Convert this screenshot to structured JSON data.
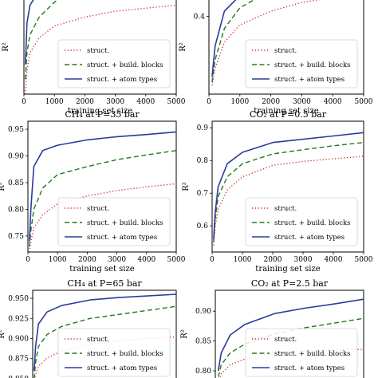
{
  "figure": {
    "colors": {
      "struct": "#d62728",
      "build_blocks": "#1f7a1f",
      "atom_types": "#2b3a9e"
    },
    "line_styles": {
      "struct": "dotted",
      "build_blocks": "dashed",
      "atom_types": "solid"
    }
  },
  "chart_data": [
    {
      "type": "line",
      "panel": "top-left",
      "title": "",
      "xlabel": "training set size",
      "ylabel": "R²",
      "xlim": [
        0,
        5000
      ],
      "ylim": [
        0.5,
        0.85
      ],
      "xticks": [
        "0",
        "1000",
        "2000",
        "3000",
        "4000",
        "5000"
      ],
      "yticks": [],
      "legend_position": "lower-right",
      "series": [
        {
          "name": "struct.",
          "x": [
            50,
            100,
            200,
            500,
            1000,
            2000,
            3000,
            4000,
            5000
          ],
          "y": [
            0.5,
            0.58,
            0.64,
            0.69,
            0.73,
            0.76,
            0.78,
            0.79,
            0.8
          ]
        },
        {
          "name": "struct. + build. blocks",
          "x": [
            50,
            100,
            200,
            500,
            1000,
            1500
          ],
          "y": [
            0.55,
            0.64,
            0.7,
            0.76,
            0.81,
            0.85
          ]
        },
        {
          "name": "struct. + atom types",
          "x": [
            50,
            100,
            200,
            500
          ],
          "y": [
            0.6,
            0.74,
            0.8,
            0.85
          ]
        }
      ]
    },
    {
      "type": "line",
      "panel": "top-right",
      "title": "",
      "xlabel": "training set size",
      "ylabel": "R²",
      "xlim": [
        0,
        5000
      ],
      "ylim": [
        -0.05,
        0.55
      ],
      "xticks": [
        "0",
        "1000",
        "2000",
        "3000",
        "4000",
        "5000"
      ],
      "yticks": [
        "0.4"
      ],
      "legend_position": "lower-right",
      "series": [
        {
          "name": "struct.",
          "x": [
            100,
            200,
            500,
            1000,
            2000,
            3000,
            4000,
            5000
          ],
          "y": [
            0.0,
            0.1,
            0.25,
            0.35,
            0.43,
            0.48,
            0.51,
            0.53
          ]
        },
        {
          "name": "struct. + build. blocks",
          "x": [
            100,
            200,
            500,
            1000,
            2000
          ],
          "y": [
            0.02,
            0.15,
            0.33,
            0.45,
            0.55
          ]
        },
        {
          "name": "struct. + atom types",
          "x": [
            100,
            200,
            500,
            1000,
            1500
          ],
          "y": [
            0.05,
            0.23,
            0.43,
            0.52,
            0.55
          ]
        }
      ]
    },
    {
      "type": "line",
      "panel": "middle-left",
      "title": "CH₄ at P=35 bar",
      "xlabel": "training set size",
      "ylabel": "R²",
      "xlim": [
        0,
        5000
      ],
      "ylim": [
        0.72,
        0.965
      ],
      "xticks": [
        "0",
        "1000",
        "2000",
        "3000",
        "4000",
        "5000"
      ],
      "yticks": [
        "0.75",
        "0.80",
        "0.85",
        "0.90",
        "0.95"
      ],
      "legend_position": "lower-right",
      "series": [
        {
          "name": "struct.",
          "x": [
            50,
            100,
            200,
            500,
            1000,
            2000,
            3000,
            4000,
            5000
          ],
          "y": [
            0.72,
            0.74,
            0.765,
            0.79,
            0.81,
            0.825,
            0.835,
            0.842,
            0.848
          ]
        },
        {
          "name": "struct. + build. blocks",
          "x": [
            50,
            100,
            200,
            500,
            1000,
            2000,
            3000,
            4000,
            5000
          ],
          "y": [
            0.73,
            0.76,
            0.8,
            0.84,
            0.865,
            0.88,
            0.893,
            0.902,
            0.91
          ]
        },
        {
          "name": "struct. + atom types",
          "x": [
            50,
            100,
            200,
            500,
            1000,
            2000,
            3000,
            4000,
            5000
          ],
          "y": [
            0.74,
            0.8,
            0.88,
            0.91,
            0.92,
            0.93,
            0.936,
            0.94,
            0.945
          ]
        }
      ]
    },
    {
      "type": "line",
      "panel": "middle-right",
      "title": "CO₂ at P=0.5 bar",
      "xlabel": "training set size",
      "ylabel": "R²",
      "xlim": [
        0,
        5000
      ],
      "ylim": [
        0.52,
        0.92
      ],
      "xticks": [
        "0",
        "1000",
        "2000",
        "3000",
        "4000",
        "5000"
      ],
      "yticks": [
        "0.6",
        "0.7",
        "0.8",
        "0.9"
      ],
      "legend_position": "lower-right",
      "series": [
        {
          "name": "struct.",
          "x": [
            50,
            100,
            200,
            500,
            1000,
            2000,
            3000,
            4000,
            5000
          ],
          "y": [
            0.54,
            0.6,
            0.65,
            0.71,
            0.75,
            0.785,
            0.797,
            0.805,
            0.813
          ]
        },
        {
          "name": "struct. + build. blocks",
          "x": [
            50,
            100,
            200,
            500,
            1000,
            2000,
            3000,
            4000,
            5000
          ],
          "y": [
            0.55,
            0.62,
            0.69,
            0.75,
            0.79,
            0.82,
            0.833,
            0.845,
            0.855
          ]
        },
        {
          "name": "struct. + atom types",
          "x": [
            50,
            100,
            200,
            500,
            1000,
            2000,
            3000,
            4000,
            5000
          ],
          "y": [
            0.56,
            0.64,
            0.72,
            0.79,
            0.825,
            0.855,
            0.865,
            0.875,
            0.885
          ]
        }
      ]
    },
    {
      "type": "line",
      "panel": "bottom-left",
      "title": "CH₄ at P=65 bar",
      "xlabel": "",
      "ylabel": "R²",
      "xlim": [
        0,
        5000
      ],
      "ylim": [
        0.845,
        0.96
      ],
      "xticks": [],
      "yticks": [
        "0.850",
        "0.875",
        "0.900",
        "0.925",
        "0.950"
      ],
      "legend_position": "lower-right",
      "series": [
        {
          "name": "struct.",
          "x": [
            50,
            100,
            200,
            500,
            1000,
            2000,
            3000,
            4000,
            5000
          ],
          "y": [
            0.845,
            0.855,
            0.865,
            0.876,
            0.884,
            0.893,
            0.897,
            0.9,
            0.902
          ]
        },
        {
          "name": "struct. + build. blocks",
          "x": [
            50,
            100,
            200,
            500,
            1000,
            2000,
            3000,
            4000,
            5000
          ],
          "y": [
            0.85,
            0.87,
            0.89,
            0.905,
            0.915,
            0.925,
            0.93,
            0.935,
            0.94
          ]
        },
        {
          "name": "struct. + atom types",
          "x": [
            50,
            100,
            200,
            500,
            1000,
            2000,
            3000,
            4000,
            5000
          ],
          "y": [
            0.86,
            0.89,
            0.918,
            0.933,
            0.941,
            0.948,
            0.951,
            0.953,
            0.955
          ]
        }
      ]
    },
    {
      "type": "line",
      "panel": "bottom-right",
      "title": "CO₂ at P=2.5 bar",
      "xlabel": "",
      "ylabel": "R²",
      "xlim": [
        0,
        5000
      ],
      "ylim": [
        0.78,
        0.935
      ],
      "xticks": [],
      "yticks": [
        "0.80",
        "0.85",
        "0.90"
      ],
      "legend_position": "lower-right",
      "series": [
        {
          "name": "struct.",
          "x": [
            100,
            200,
            500,
            1000,
            2000,
            3000,
            4000,
            5000
          ],
          "y": [
            0.78,
            0.795,
            0.81,
            0.82,
            0.83,
            0.833,
            0.835,
            0.836
          ]
        },
        {
          "name": "struct. + build. blocks",
          "x": [
            100,
            200,
            500,
            1000,
            2000,
            3000,
            4000,
            5000
          ],
          "y": [
            0.79,
            0.81,
            0.83,
            0.845,
            0.862,
            0.872,
            0.88,
            0.888
          ]
        },
        {
          "name": "struct. + atom types",
          "x": [
            100,
            200,
            500,
            1000,
            2000,
            3000,
            4000,
            5000
          ],
          "y": [
            0.8,
            0.83,
            0.86,
            0.878,
            0.896,
            0.905,
            0.912,
            0.92
          ]
        }
      ]
    }
  ]
}
